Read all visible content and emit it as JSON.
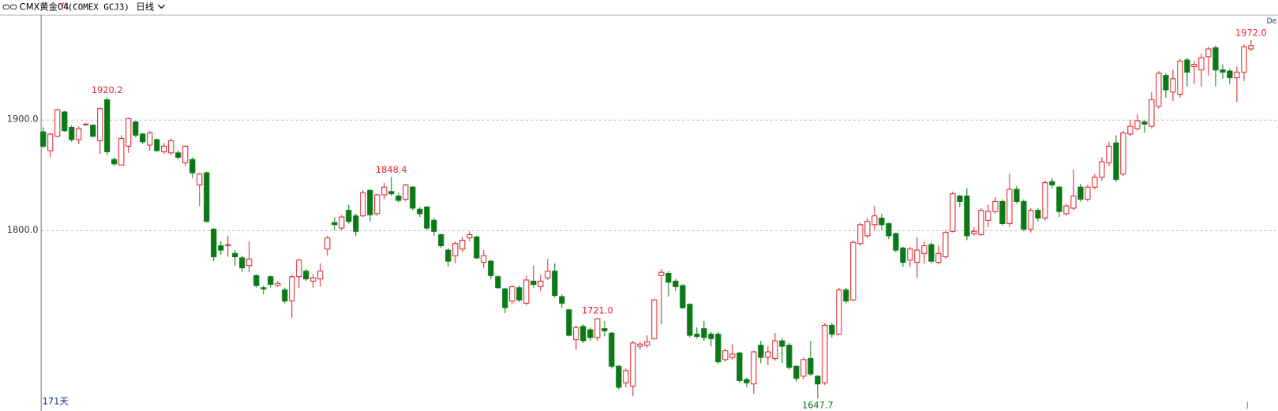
{
  "header": {
    "symbol": "CMX黄金04",
    "superscript": "M",
    "code": "(COMEX GCJ3)",
    "period": "日线",
    "corner": "De"
  },
  "chart_data": {
    "type": "candlestick",
    "footnote": "171天",
    "ylim": [
      1638,
      1995
    ],
    "yticks": [
      {
        "value": 1900,
        "label": "1900.0"
      },
      {
        "value": 1800,
        "label": "1800.0"
      }
    ],
    "grid": true,
    "up_color": "#e0222b",
    "down_color": "#0b7a16",
    "open": [
      1889,
      1872,
      1885,
      1907,
      1893,
      1882,
      1896,
      1895,
      1881,
      1918,
      1864,
      1859,
      1876,
      1898,
      1887,
      1877,
      1882,
      1871,
      1870,
      1870,
      1861,
      1864,
      1841,
      1852,
      1801,
      1786,
      1786,
      1779,
      1775,
      1768,
      1759,
      1748,
      1758,
      1750,
      1746,
      1736,
      1758,
      1763,
      1754,
      1756,
      1783,
      1807,
      1802,
      1818,
      1813,
      1813,
      1836,
      1815,
      1832,
      1835,
      1831,
      1828,
      1839,
      1819,
      1821,
      1809,
      1796,
      1782,
      1777,
      1783,
      1793,
      1794,
      1771,
      1772,
      1758,
      1747,
      1736,
      1748,
      1734,
      1754,
      1749,
      1757,
      1763,
      1740,
      1728,
      1701,
      1713,
      1710,
      1703,
      1711,
      1707,
      1677,
      1662,
      1659,
      1695,
      1696,
      1702,
      1759,
      1761,
      1754,
      1750,
      1733,
      1706,
      1711,
      1706,
      1706,
      1683,
      1685,
      1689,
      1665,
      1661,
      1696,
      1685,
      1684,
      1700,
      1696,
      1677,
      1668,
      1684,
      1668,
      1662,
      1714,
      1706,
      1746,
      1737,
      1788,
      1795,
      1805,
      1811,
      1806,
      1797,
      1784,
      1773,
      1771,
      1779,
      1787,
      1771,
      1776,
      1799,
      1831,
      1831,
      1797,
      1796,
      1809,
      1817,
      1826,
      1806,
      1837,
      1826,
      1801,
      1818,
      1811,
      1844,
      1839,
      1815,
      1820,
      1839,
      1828,
      1839,
      1848,
      1861,
      1879,
      1851,
      1887,
      1892,
      1898,
      1894,
      1912,
      1940,
      1925,
      1923,
      1954,
      1948,
      1945,
      1957,
      1965,
      1945,
      1944,
      1938,
      1943,
      1964
    ],
    "high": [
      1893,
      1888,
      1910,
      1908,
      1895,
      1894,
      1897,
      1896,
      1911,
      1920.2,
      1866,
      1886,
      1902,
      1899,
      1888,
      1890,
      1883,
      1879,
      1883,
      1872,
      1877,
      1866,
      1852,
      1853,
      1802,
      1790,
      1795,
      1782,
      1777,
      1790,
      1760,
      1750,
      1759,
      1754,
      1748,
      1760,
      1774,
      1765,
      1760,
      1770,
      1795,
      1812,
      1814,
      1823,
      1815,
      1836,
      1837,
      1833,
      1843,
      1848.4,
      1834,
      1842,
      1840,
      1821,
      1822,
      1811,
      1797,
      1784,
      1790,
      1794,
      1799,
      1795,
      1782,
      1773,
      1759,
      1748,
      1750,
      1750,
      1759,
      1768,
      1760,
      1774,
      1770,
      1742,
      1729,
      1714,
      1715,
      1712,
      1721,
      1718,
      1708,
      1678,
      1675,
      1700,
      1699,
      1705,
      1738,
      1765,
      1763,
      1756,
      1751,
      1734,
      1712,
      1718,
      1708,
      1708,
      1693,
      1697,
      1690,
      1667,
      1691,
      1700,
      1695,
      1707,
      1702,
      1698,
      1678,
      1685,
      1700,
      1669,
      1716,
      1716,
      1748,
      1748,
      1791,
      1807,
      1811,
      1822,
      1815,
      1807,
      1798,
      1785,
      1785,
      1794,
      1790,
      1789,
      1786,
      1800,
      1835,
      1832,
      1838,
      1803,
      1820,
      1823,
      1830,
      1828,
      1851,
      1840,
      1828,
      1820,
      1820,
      1845,
      1847,
      1840,
      1824,
      1855,
      1842,
      1841,
      1851,
      1866,
      1880,
      1886,
      1890,
      1900,
      1905,
      1900,
      1925,
      1944,
      1942,
      1945,
      1955,
      1956,
      1953,
      1960,
      1966,
      1967,
      1950,
      1946,
      1948,
      1968,
      1972
    ],
    "low": [
      1874,
      1866,
      1884,
      1889,
      1880,
      1878,
      1895,
      1884,
      1869,
      1868,
      1858,
      1859,
      1870,
      1884,
      1878,
      1872,
      1871,
      1869,
      1868,
      1864,
      1858,
      1847,
      1822,
      1807,
      1772,
      1778,
      1776,
      1768,
      1762,
      1762,
      1748,
      1742,
      1748,
      1749,
      1734,
      1721,
      1748,
      1754,
      1748,
      1749,
      1777,
      1800,
      1800,
      1806,
      1795,
      1812,
      1808,
      1813,
      1828,
      1831,
      1825,
      1826,
      1818,
      1812,
      1800,
      1795,
      1784,
      1767,
      1770,
      1780,
      1790,
      1774,
      1766,
      1756,
      1747,
      1725,
      1733,
      1735,
      1732,
      1748,
      1745,
      1755,
      1739,
      1730,
      1704,
      1692,
      1698,
      1700,
      1700,
      1704,
      1675,
      1656,
      1658,
      1650,
      1692,
      1694,
      1701,
      1715,
      1740,
      1745,
      1729,
      1703,
      1702,
      1700,
      1695,
      1679,
      1681,
      1683,
      1662,
      1658,
      1652,
      1680,
      1678,
      1682,
      1680,
      1674,
      1663,
      1665,
      1668,
      1647.7,
      1660,
      1703,
      1705,
      1734,
      1736,
      1786,
      1793,
      1800,
      1800,
      1792,
      1780,
      1767,
      1767,
      1757,
      1770,
      1770,
      1769,
      1774,
      1798,
      1821,
      1791,
      1795,
      1795,
      1803,
      1815,
      1804,
      1803,
      1824,
      1799,
      1798,
      1808,
      1809,
      1838,
      1812,
      1813,
      1818,
      1826,
      1826,
      1837,
      1845,
      1858,
      1844,
      1849,
      1885,
      1890,
      1888,
      1892,
      1910,
      1920,
      1917,
      1920,
      1930,
      1932,
      1930,
      1940,
      1930,
      1937,
      1932,
      1916,
      1935,
      1962
    ],
    "close": [
      1876,
      1887,
      1909,
      1890,
      1882,
      1892,
      1896,
      1885,
      1910,
      1871,
      1860,
      1883,
      1901,
      1886,
      1880,
      1888,
      1872,
      1876,
      1881,
      1866,
      1876,
      1852,
      1851,
      1808,
      1776,
      1782,
      1787,
      1776,
      1766,
      1774,
      1750,
      1747,
      1751,
      1752,
      1736,
      1758,
      1773,
      1756,
      1757,
      1763,
      1793,
      1805,
      1812,
      1808,
      1799,
      1834,
      1814,
      1832,
      1839,
      1833,
      1827,
      1841,
      1820,
      1815,
      1802,
      1799,
      1786,
      1772,
      1788,
      1791,
      1796,
      1775,
      1777,
      1759,
      1748,
      1730,
      1749,
      1737,
      1755,
      1751,
      1754,
      1763,
      1741,
      1734,
      1705,
      1712,
      1700,
      1703,
      1720,
      1709,
      1677,
      1658,
      1673,
      1698,
      1697,
      1699,
      1737,
      1762,
      1753,
      1749,
      1730,
      1705,
      1704,
      1703,
      1702,
      1681,
      1691,
      1688,
      1664,
      1662,
      1690,
      1685,
      1690,
      1700,
      1695,
      1676,
      1666,
      1683,
      1670,
      1661,
      1714,
      1706,
      1746,
      1736,
      1789,
      1805,
      1808,
      1813,
      1805,
      1795,
      1782,
      1771,
      1783,
      1782,
      1786,
      1772,
      1779,
      1798,
      1833,
      1826,
      1795,
      1799,
      1818,
      1817,
      1826,
      1806,
      1837,
      1826,
      1801,
      1818,
      1811,
      1843,
      1841,
      1817,
      1822,
      1831,
      1828,
      1839,
      1848,
      1862,
      1876,
      1846,
      1888,
      1894,
      1899,
      1896,
      1918,
      1942,
      1927,
      1937,
      1953,
      1943,
      1950,
      1956,
      1964,
      1945,
      1943,
      1938,
      1943,
      1966,
      1967
    ],
    "extreme_labels": [
      1920.2,
      {
        "value": 1721,
        "label": "1721.0"
      },
      1848.4,
      1647.7,
      {
        "value": 1972,
        "label": "1972.0"
      }
    ]
  }
}
